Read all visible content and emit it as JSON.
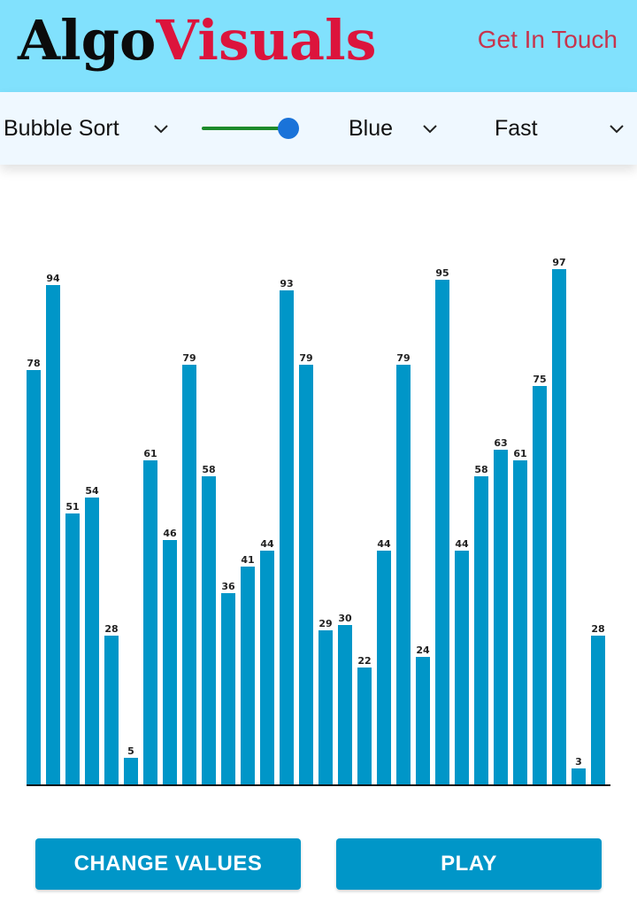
{
  "header": {
    "logo_part1": "Algo",
    "logo_part2": "Visuals",
    "contact_link": "Get In Touch"
  },
  "toolbar": {
    "algorithm": {
      "selected": "Bubble Sort",
      "icon": "chevron-down-icon"
    },
    "size_slider": {
      "value_fraction": 0.92
    },
    "color": {
      "selected": "Blue",
      "icon": "chevron-down-icon"
    },
    "speed": {
      "selected": "Fast",
      "icon": "chevron-down-icon"
    }
  },
  "chart_data": {
    "type": "bar",
    "values": [
      78,
      94,
      51,
      54,
      28,
      5,
      61,
      46,
      79,
      58,
      36,
      41,
      44,
      93,
      79,
      29,
      30,
      22,
      44,
      79,
      24,
      95,
      44,
      58,
      63,
      61,
      75,
      97,
      3,
      28
    ],
    "ylim": [
      0,
      100
    ],
    "bar_color": "#0096c8"
  },
  "buttons": {
    "change_values": "CHANGE VALUES",
    "play": "PLAY"
  },
  "colors": {
    "header_bg": "#81e1fd",
    "toolbar_bg": "#eff8ff",
    "brand_red": "#dc143c",
    "accent_blue": "#0096c8"
  }
}
